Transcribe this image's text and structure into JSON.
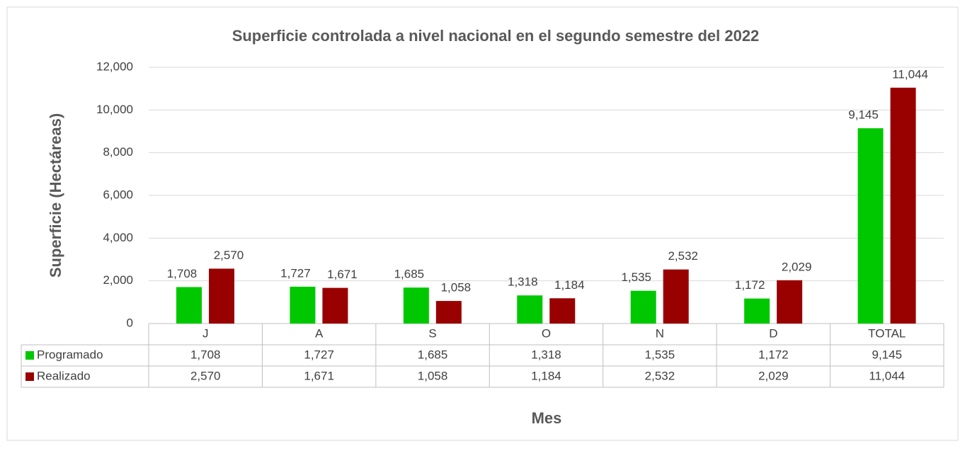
{
  "chart_data": {
    "type": "bar",
    "title": "Superficie controlada a nivel nacional en el segundo semestre del 2022",
    "y_label": "Superficie (Hectáreas)",
    "x_label": "Mes",
    "categories": [
      "J",
      "A",
      "S",
      "O",
      "N",
      "D",
      "TOTAL"
    ],
    "series": [
      {
        "name": "Programado",
        "color": "#00c800",
        "values": [
          1708,
          1727,
          1685,
          1318,
          1535,
          1172,
          9145
        ],
        "value_labels": [
          "1,708",
          "1,727",
          "1,685",
          "1,318",
          "1,535",
          "1,172",
          "9,145"
        ]
      },
      {
        "name": "Realizado",
        "color": "#990000",
        "values": [
          2570,
          1671,
          1058,
          1184,
          2532,
          2029,
          11044
        ],
        "value_labels": [
          "2,570",
          "1,671",
          "1,058",
          "1,184",
          "2,532",
          "2,029",
          "11,044"
        ]
      }
    ],
    "ylim": [
      0,
      12000
    ],
    "yticks": [
      0,
      {
        "value": 2000,
        "label": "2,000"
      },
      {
        "value": 4000,
        "label": "4,000"
      },
      {
        "value": 6000,
        "label": "6,000"
      },
      {
        "value": 8000,
        "label": "8,000"
      },
      {
        "value": 10000,
        "label": "10,000"
      },
      {
        "value": 12000,
        "label": "12,000"
      }
    ],
    "grid": true
  }
}
